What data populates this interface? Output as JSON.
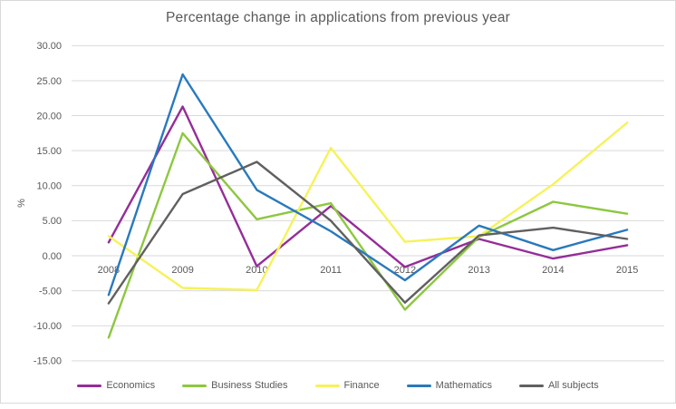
{
  "chart_data": {
    "type": "line",
    "title": "Percentage change in applications from previous year",
    "xlabel": "",
    "ylabel": "%",
    "categories": [
      "2008",
      "2009",
      "2010",
      "2011",
      "2012",
      "2013",
      "2014",
      "2015"
    ],
    "series": [
      {
        "name": "Economics",
        "color": "#952d98",
        "values": [
          1.9,
          21.3,
          -1.5,
          7.1,
          -1.6,
          2.4,
          -0.4,
          1.5
        ]
      },
      {
        "name": "Business Studies",
        "color": "#8dc73f",
        "values": [
          -11.7,
          17.5,
          5.2,
          7.5,
          -7.7,
          2.7,
          7.7,
          6.0
        ]
      },
      {
        "name": "Finance",
        "color": "#f6f25b",
        "values": [
          2.8,
          -4.6,
          -4.9,
          15.4,
          2.0,
          2.8,
          10.2,
          19.0
        ]
      },
      {
        "name": "Mathematics",
        "color": "#2979bd",
        "values": [
          -5.6,
          25.9,
          9.4,
          3.5,
          -3.5,
          4.3,
          0.8,
          3.7
        ]
      },
      {
        "name": "All subjects",
        "color": "#606060",
        "values": [
          -6.8,
          8.8,
          13.4,
          5.0,
          -6.7,
          2.9,
          4.0,
          2.4
        ]
      }
    ],
    "ylim": [
      -15,
      30
    ],
    "yticks": [
      30,
      25,
      20,
      15,
      10,
      5,
      0,
      -5,
      -10,
      -15
    ],
    "ytick_format": "two-decimals",
    "grid": true,
    "gridline_color": "#d9d9d9",
    "text_color": "#595959",
    "legend_position": "bottom"
  }
}
